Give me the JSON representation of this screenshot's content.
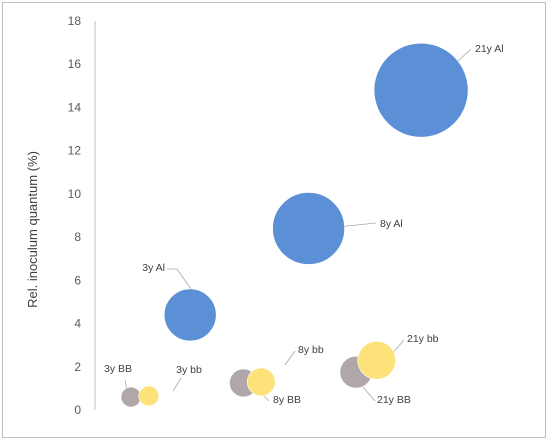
{
  "chart_data": {
    "type": "bubble",
    "title": "",
    "xlabel": "",
    "ylabel": "Rel. inoculum quantum (%)",
    "ylim": [
      0,
      18
    ],
    "yticks": [
      "0",
      "2",
      "4",
      "6",
      "8",
      "10",
      "12",
      "14",
      "16",
      "18"
    ],
    "grid": false,
    "legend": "none",
    "colors": {
      "Al": "#5b8fd6",
      "BB": "#b0a8a8",
      "bb": "#fde27a"
    },
    "points": [
      {
        "label": "3y BB",
        "group": "BB",
        "x": 1.0,
        "y": 0.6,
        "r": 10
      },
      {
        "label": "3y bb",
        "group": "bb",
        "x": 1.3,
        "y": 0.65,
        "r": 10
      },
      {
        "label": "3y Al",
        "group": "Al",
        "x": 2.0,
        "y": 4.4,
        "r": 26
      },
      {
        "label": "8y BB",
        "group": "BB",
        "x": 2.9,
        "y": 1.25,
        "r": 14
      },
      {
        "label": "8y bb",
        "group": "bb",
        "x": 3.2,
        "y": 1.3,
        "r": 14
      },
      {
        "label": "8y Al",
        "group": "Al",
        "x": 4.0,
        "y": 8.4,
        "r": 36
      },
      {
        "label": "21y BB",
        "group": "BB",
        "x": 4.8,
        "y": 1.75,
        "r": 16
      },
      {
        "label": "21y bb",
        "group": "bb",
        "x": 5.15,
        "y": 2.3,
        "r": 19
      },
      {
        "label": "21y Al",
        "group": "Al",
        "x": 5.9,
        "y": 14.8,
        "r": 47
      }
    ]
  }
}
